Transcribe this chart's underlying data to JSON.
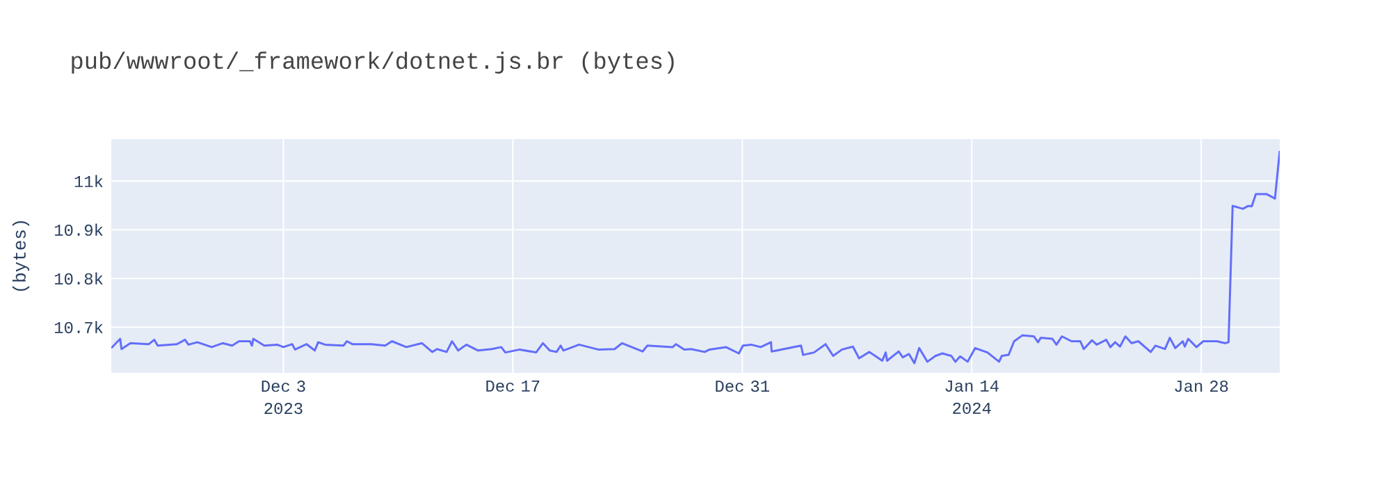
{
  "chart_data": {
    "type": "line",
    "title": "pub/wwwroot/_framework/dotnet.js.br (bytes)",
    "ylabel": "(bytes)",
    "color": "#636efa",
    "marker": "none",
    "line_style": "solid",
    "grid": true,
    "xlim": [
      "2023-11-22T12:00",
      "2024-02-01T19:00"
    ],
    "xticks": [
      {
        "value": "2023-12-03",
        "label": "Dec 3 2023"
      },
      {
        "value": "2023-12-17",
        "label": "Dec 17"
      },
      {
        "value": "2023-12-31",
        "label": "Dec 31"
      },
      {
        "value": "2024-01-14",
        "label": "Jan 14 2024"
      },
      {
        "value": "2024-01-28",
        "label": "Jan 28"
      }
    ],
    "ylim": [
      10606,
      11086
    ],
    "yticks": [
      {
        "value": 10700,
        "label": "10.7k"
      },
      {
        "value": 10800,
        "label": "10.8k"
      },
      {
        "value": 10900,
        "label": "10.9k"
      },
      {
        "value": 11000,
        "label": "11k"
      }
    ],
    "x": [
      "2023-11-22T12:00",
      "2023-11-23T01:00",
      "2023-11-23T03:00",
      "2023-11-23T16:00",
      "2023-11-24T19:00",
      "2023-11-25T03:00",
      "2023-11-25T08:00",
      "2023-11-26T12:00",
      "2023-11-27T00:00",
      "2023-11-27T05:00",
      "2023-11-27T18:00",
      "2023-11-28T15:00",
      "2023-11-29T07:00",
      "2023-11-29T21:00",
      "2023-11-30T07:00",
      "2023-11-30T23:00",
      "2023-12-01T02:00",
      "2023-12-01T04:00",
      "2023-12-01T20:00",
      "2023-12-02T15:00",
      "2023-12-03T00:00",
      "2023-12-03T13:00",
      "2023-12-03T17:00",
      "2023-12-04T10:00",
      "2023-12-04T22:00",
      "2023-12-05T03:00",
      "2023-12-05T13:00",
      "2023-12-06T16:00",
      "2023-12-06T21:00",
      "2023-12-07T05:00",
      "2023-12-08T09:00",
      "2023-12-09T05:00",
      "2023-12-09T15:00",
      "2023-12-10T12:00",
      "2023-12-11T11:00",
      "2023-12-12T02:00",
      "2023-12-12T09:00",
      "2023-12-12T23:00",
      "2023-12-13T07:00",
      "2023-12-13T16:00",
      "2023-12-14T04:00",
      "2023-12-14T14:00",
      "2023-12-14T21:00",
      "2023-12-15T17:00",
      "2023-12-16T07:00",
      "2023-12-16T13:00",
      "2023-12-17T10:00",
      "2023-12-18T10:00",
      "2023-12-18T20:00",
      "2023-12-19T06:00",
      "2023-12-19T16:00",
      "2023-12-19T22:00",
      "2023-12-20T02:00",
      "2023-12-21T01:00",
      "2023-12-22T05:00",
      "2023-12-23T05:00",
      "2023-12-23T16:00",
      "2023-12-24T22:00",
      "2023-12-25T05:00",
      "2023-12-26T18:00",
      "2023-12-26T23:00",
      "2023-12-27T11:00",
      "2023-12-27T21:00",
      "2023-12-28T17:00",
      "2023-12-29T00:00",
      "2023-12-30T00:00",
      "2023-12-30T19:00",
      "2023-12-31T01:00",
      "2023-12-31T13:00",
      "2024-01-01T03:00",
      "2024-01-01T18:00",
      "2024-01-01T19:00",
      "2024-01-03T14:00",
      "2024-01-03T17:00",
      "2024-01-04T09:00",
      "2024-01-05T02:00",
      "2024-01-05T13:00",
      "2024-01-06T02:00",
      "2024-01-06T18:00",
      "2024-01-07T03:00",
      "2024-01-07T18:00",
      "2024-01-08T13:00",
      "2024-01-08T18:00",
      "2024-01-08T20:00",
      "2024-01-09T13:00",
      "2024-01-09T19:00",
      "2024-01-10T04:00",
      "2024-01-10T12:00",
      "2024-01-10T19:00",
      "2024-01-11T07:00",
      "2024-01-11T19:00",
      "2024-01-12T05:00",
      "2024-01-12T18:00",
      "2024-01-13T00:00",
      "2024-01-13T07:00",
      "2024-01-13T18:00",
      "2024-01-14T05:00",
      "2024-01-14T23:00",
      "2024-01-15T16:00",
      "2024-01-15T20:00",
      "2024-01-16T06:00",
      "2024-01-16T14:00",
      "2024-01-17T02:00",
      "2024-01-17T19:00",
      "2024-01-18T01:00",
      "2024-01-18T05:00",
      "2024-01-18T22:00",
      "2024-01-19T04:00",
      "2024-01-19T12:00",
      "2024-01-20T02:00",
      "2024-01-20T15:00",
      "2024-01-20T20:00",
      "2024-01-21T08:00",
      "2024-01-21T15:00",
      "2024-01-22T05:00",
      "2024-01-22T11:00",
      "2024-01-22T18:00",
      "2024-01-23T01:00",
      "2024-01-23T09:00",
      "2024-01-23T18:00",
      "2024-01-24T04:00",
      "2024-01-24T22:00",
      "2024-01-25T05:00",
      "2024-01-25T19:00",
      "2024-01-26T02:00",
      "2024-01-26T10:00",
      "2024-01-26T21:00",
      "2024-01-27T00:00",
      "2024-01-27T05:00",
      "2024-01-27T17:00",
      "2024-01-28T03:00",
      "2024-01-28T23:00",
      "2024-01-29T11:00",
      "2024-01-29T16:00",
      "2024-01-29T22:00",
      "2024-01-30T13:00",
      "2024-01-30T21:00",
      "2024-01-31T02:00",
      "2024-01-31T08:00",
      "2024-02-01T00:00",
      "2024-02-01T12:00",
      "2024-02-01T19:00"
    ],
    "values": [
      10657,
      10676,
      10655,
      10667,
      10665,
      10674,
      10662,
      10665,
      10674,
      10664,
      10669,
      10659,
      10667,
      10662,
      10671,
      10671,
      10662,
      10676,
      10662,
      10664,
      10659,
      10665,
      10654,
      10665,
      10652,
      10669,
      10664,
      10662,
      10671,
      10665,
      10665,
      10662,
      10671,
      10659,
      10667,
      10649,
      10655,
      10649,
      10671,
      10652,
      10664,
      10657,
      10652,
      10655,
      10659,
      10648,
      10654,
      10648,
      10667,
      10652,
      10649,
      10662,
      10652,
      10664,
      10654,
      10655,
      10667,
      10650,
      10662,
      10659,
      10665,
      10654,
      10655,
      10649,
      10654,
      10659,
      10646,
      10662,
      10664,
      10659,
      10669,
      10650,
      10662,
      10643,
      10648,
      10665,
      10641,
      10654,
      10660,
      10636,
      10649,
      10631,
      10648,
      10631,
      10650,
      10638,
      10645,
      10626,
      10657,
      10629,
      10641,
      10646,
      10641,
      10629,
      10640,
      10629,
      10657,
      10648,
      10629,
      10641,
      10643,
      10671,
      10683,
      10681,
      10669,
      10678,
      10676,
      10664,
      10681,
      10671,
      10671,
      10655,
      10673,
      10664,
      10674,
      10659,
      10669,
      10660,
      10681,
      10667,
      10671,
      10649,
      10662,
      10655,
      10678,
      10657,
      10671,
      10660,
      10676,
      10659,
      10671,
      10671,
      10667,
      10669,
      10949,
      10943,
      10949,
      10948,
      10973,
      10973,
      10964,
      11062
    ]
  }
}
